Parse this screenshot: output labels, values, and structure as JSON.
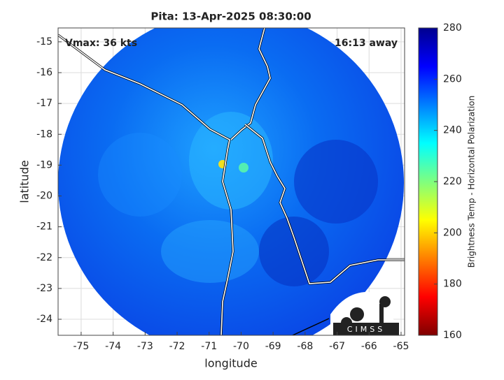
{
  "chart_data": {
    "type": "image",
    "title": "Pita: 13-Apr-2025 08:30:00",
    "annotations": [
      "Vmax: 36 kts",
      "16:13 away"
    ],
    "x_label": "longitude",
    "y_label": "latitude",
    "xlim": [
      -75.72,
      -64.89
    ],
    "xticks": [
      -75,
      -74,
      -73,
      -72,
      -71,
      -70,
      -69,
      -68,
      -67,
      -66,
      -65
    ],
    "ylim": [
      -24.52,
      -14.55
    ],
    "yticks": [
      -15,
      -16,
      -17,
      -18,
      -19,
      -20,
      -21,
      -22,
      -23,
      -24
    ],
    "grid": true,
    "colorbar": {
      "label": "Brightness Temp - Horizontal Polarization",
      "lim": [
        160,
        280
      ],
      "ticks": [
        160,
        180,
        200,
        220,
        240,
        260,
        280
      ],
      "colormap": [
        "#7f0000",
        "#ff0000",
        "#ff7f00",
        "#ffff00",
        "#7fff7f",
        "#00ffff",
        "#007fff",
        "#0000ff",
        "#00008f"
      ]
    },
    "logo": "CIMSS"
  }
}
